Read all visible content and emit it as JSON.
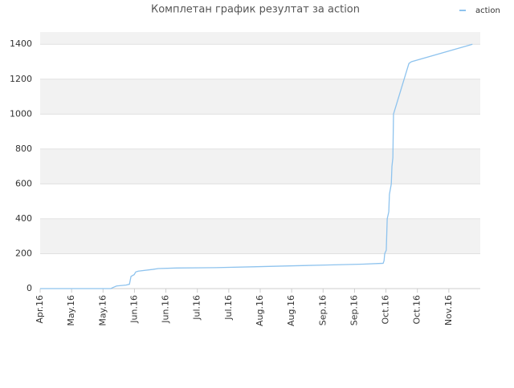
{
  "chart_data": {
    "type": "line",
    "title": "Комплетан график резултат за action",
    "x": [
      0,
      2.25,
      2.3,
      2.43,
      2.73,
      2.84,
      2.89,
      2.99,
      3.04,
      3.12,
      3.58,
      3.76,
      4.34,
      5.57,
      6.77,
      7.92,
      9.07,
      10.27,
      10.91,
      10.94,
      10.96,
      11.01,
      11.04,
      11.09,
      11.11,
      11.17,
      11.19,
      11.22,
      11.24,
      11.73,
      11.81,
      13.75
    ],
    "series": [
      {
        "name": "action",
        "color": "#8ec3ee",
        "values": [
          0,
          0,
          5,
          15,
          20,
          25,
          70,
          80,
          95,
          100,
          110,
          115,
          118,
          120,
          125,
          130,
          135,
          140,
          145,
          160,
          200,
          220,
          400,
          440,
          540,
          600,
          700,
          750,
          1000,
          1290,
          1300,
          1400
        ]
      }
    ],
    "xlim": [
      0,
      14
    ],
    "xticks": [
      {
        "value": 0,
        "label": "Apr.16"
      },
      {
        "value": 1,
        "label": "May.16"
      },
      {
        "value": 2,
        "label": "May.16"
      },
      {
        "value": 3,
        "label": "Jun.16"
      },
      {
        "value": 4,
        "label": "Jun.16"
      },
      {
        "value": 5,
        "label": "Jul.16"
      },
      {
        "value": 6,
        "label": "Jul.16"
      },
      {
        "value": 7,
        "label": "Aug.16"
      },
      {
        "value": 8,
        "label": "Aug.16"
      },
      {
        "value": 9,
        "label": "Sep.16"
      },
      {
        "value": 10,
        "label": "Sep.16"
      },
      {
        "value": 11,
        "label": "Oct.16"
      },
      {
        "value": 12,
        "label": "Oct.16"
      },
      {
        "value": 13,
        "label": "Nov.16"
      }
    ],
    "ylim": [
      0,
      1470
    ],
    "yticks": [
      0,
      200,
      400,
      600,
      800,
      1000,
      1200,
      1400
    ],
    "grid": true,
    "legend": "top-right"
  }
}
